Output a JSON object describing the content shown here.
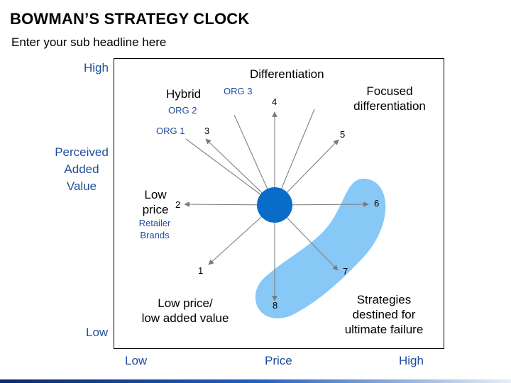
{
  "header": {
    "title": "BOWMAN’S STRATEGY CLOCK",
    "subtitle": "Enter your sub headline here"
  },
  "y_axis": {
    "high": "High",
    "low": "Low",
    "title_lines": [
      "Perceived",
      "Added",
      "Value"
    ]
  },
  "x_axis": {
    "low": "Low",
    "title": "Price",
    "high": "High"
  },
  "strategies": {
    "n1": "1",
    "n2": "2",
    "n3": "3",
    "n4": "4",
    "n5": "5",
    "n6": "6",
    "n7": "7",
    "n8": "8",
    "differentiation": "Differentiation",
    "hybrid": "Hybrid",
    "focused": [
      "Focused",
      "differentiation"
    ],
    "low_price": [
      "Low",
      "price"
    ],
    "low_price_low_value": [
      "Low price/",
      "low added value"
    ],
    "failure": [
      "Strategies",
      "destined for",
      "ultimate failure"
    ]
  },
  "orgs": {
    "org1": "ORG 1",
    "org2": "ORG 2",
    "org3": "ORG 3",
    "retailer": [
      "Retailer",
      "Brands"
    ]
  },
  "colors": {
    "hub": "#0a6cc9",
    "failure_zone": "#87c8f7",
    "accent_text": "#1f4e9a"
  }
}
